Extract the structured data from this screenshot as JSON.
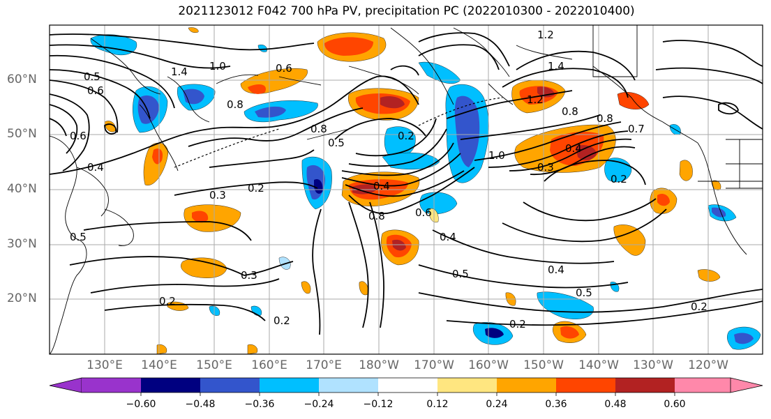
{
  "title": "2021123012 F042 700 hPa PV, precipitation PC (2022010300 - 2022010400)",
  "map": {
    "lat_labels": [
      "60°N",
      "50°N",
      "40°N",
      "30°N",
      "20°N"
    ],
    "lat_values": [
      60,
      50,
      40,
      30,
      20
    ],
    "lon_labels": [
      "130°E",
      "140°E",
      "150°E",
      "160°E",
      "170°E",
      "180°W",
      "170°W",
      "160°W",
      "150°W",
      "140°W",
      "130°W",
      "120°W"
    ],
    "lon_values": [
      130,
      140,
      150,
      160,
      170,
      180,
      190,
      200,
      210,
      220,
      230,
      240
    ],
    "lat_range": [
      10,
      70
    ],
    "lon_range": [
      120,
      250
    ],
    "grid": true,
    "contour_labels": [
      "1.2",
      "1.4",
      "1.0",
      "0.6",
      "0.5",
      "0.6",
      "0.8",
      "0.4",
      "0.2",
      "0.3",
      "0.8",
      "0.5",
      "0.2",
      "1.4",
      "1.2",
      "0.8",
      "0.8",
      "0.7",
      "0.4",
      "0.3",
      "1.0",
      "0.2",
      "0.4",
      "0.8",
      "0.6",
      "0.4",
      "0.5",
      "0.3",
      "0.2",
      "0.2",
      "0.4",
      "0.5",
      "0.2",
      "0.2",
      "0.6",
      "0.5"
    ]
  },
  "colorbar": {
    "ticks": [
      "−0.60",
      "−0.48",
      "−0.36",
      "−0.24",
      "−0.12",
      "0.12",
      "0.24",
      "0.36",
      "0.48",
      "0.60"
    ],
    "colors": [
      "#9933cc",
      "#000080",
      "#3355cc",
      "#00bfff",
      "#b0e2ff",
      "#ffffff",
      "#ffe680",
      "#ffa500",
      "#ff4500",
      "#b22222",
      "#ff88aa"
    ]
  },
  "colors": {
    "neg_strong": "#3355cc",
    "neg_medium": "#00bfff",
    "neg_weak": "#b0e2ff",
    "pos_weak": "#ffe680",
    "pos_medium": "#ffa500",
    "pos_strong": "#ff4500",
    "pos_very": "#b22222",
    "neg_very": "#000080"
  }
}
